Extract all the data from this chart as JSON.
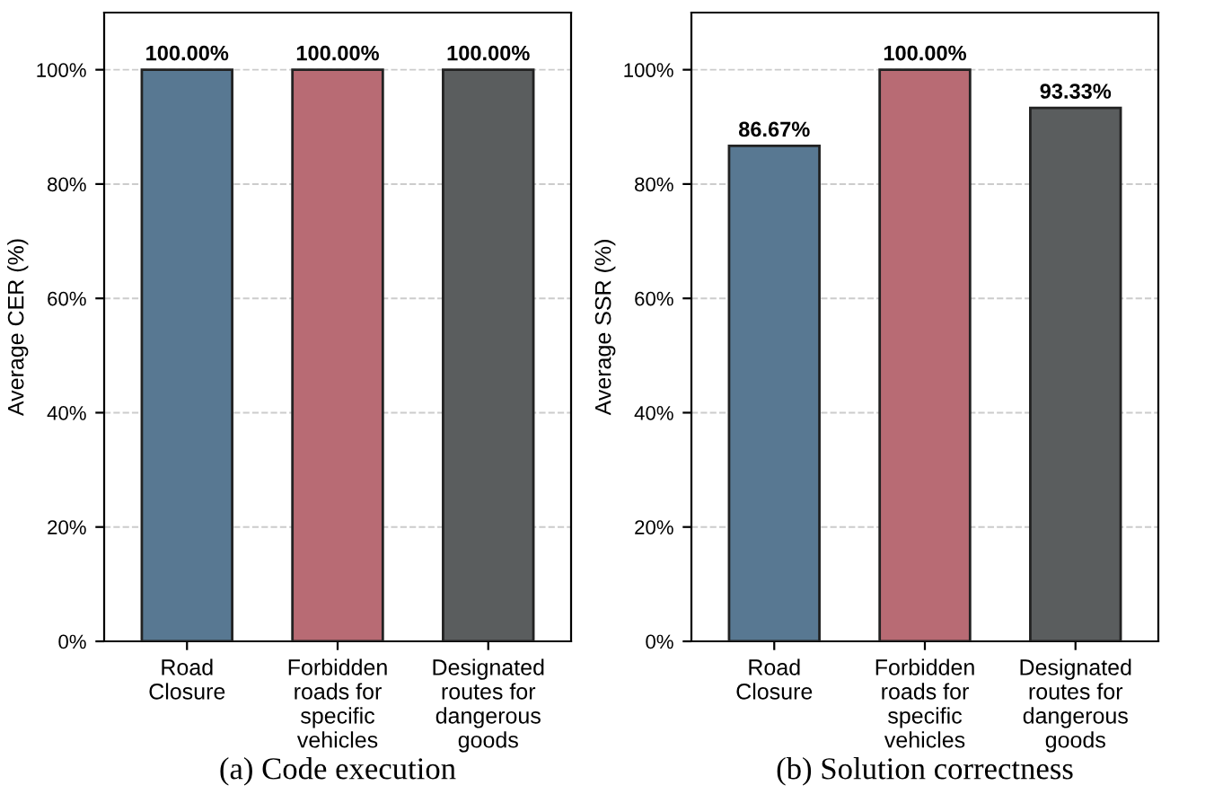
{
  "chart_data": [
    {
      "type": "bar",
      "xlabel": "(a) Code execution",
      "ylabel": "Average CER (%)",
      "categories": [
        "Road\nClosure",
        "Forbidden\nroads for\nspecific\nvehicles",
        "Designated\nroutes for\ndangerous\ngoods"
      ],
      "values": [
        100,
        100,
        100
      ],
      "colors": [
        "#587892",
        "#b86b74",
        "#5a5d5e"
      ],
      "value_labels": [
        "100.00%",
        "100.00%",
        "100.00%"
      ],
      "ylim": [
        0,
        110
      ],
      "yticks": [
        {
          "value": 0,
          "label": "0%"
        },
        {
          "value": 20,
          "label": "20%"
        },
        {
          "value": 40,
          "label": "40%"
        },
        {
          "value": 60,
          "label": "60%"
        },
        {
          "value": 80,
          "label": "80%"
        },
        {
          "value": 100,
          "label": "100%"
        }
      ],
      "grid": "y"
    },
    {
      "type": "bar",
      "xlabel": "(b) Solution correctness",
      "ylabel": "Average SSR (%)",
      "categories": [
        "Road\nClosure",
        "Forbidden\nroads for\nspecific\nvehicles",
        "Designated\nroutes for\ndangerous\ngoods"
      ],
      "values": [
        86.67,
        100,
        93.33
      ],
      "colors": [
        "#587892",
        "#b86b74",
        "#5a5d5e"
      ],
      "value_labels": [
        "86.67%",
        "100.00%",
        "93.33%"
      ],
      "ylim": [
        0,
        110
      ],
      "yticks": [
        {
          "value": 0,
          "label": "0%"
        },
        {
          "value": 20,
          "label": "20%"
        },
        {
          "value": 40,
          "label": "40%"
        },
        {
          "value": 60,
          "label": "60%"
        },
        {
          "value": 80,
          "label": "80%"
        },
        {
          "value": 100,
          "label": "100%"
        }
      ],
      "grid": "y"
    }
  ]
}
